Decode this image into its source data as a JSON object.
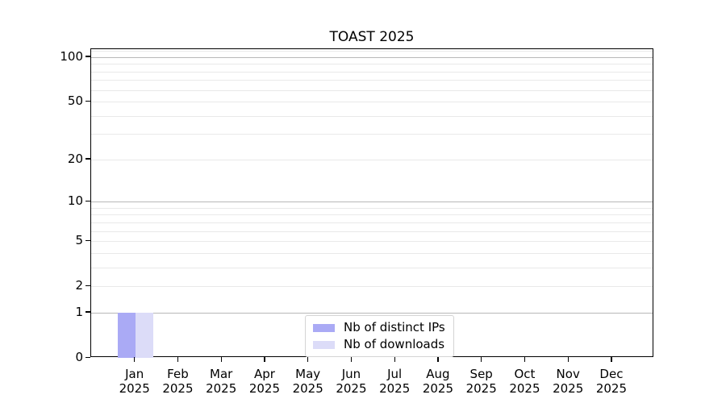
{
  "chart_data": {
    "type": "bar",
    "title": "TOAST 2025",
    "categories": [
      "Jan 2025",
      "Feb 2025",
      "Mar 2025",
      "Apr 2025",
      "May 2025",
      "Jun 2025",
      "Jul 2025",
      "Aug 2025",
      "Sep 2025",
      "Oct 2025",
      "Nov 2025",
      "Dec 2025"
    ],
    "series": [
      {
        "name": "Nb of distinct IPs",
        "color": "#aaaaf5",
        "values": [
          1,
          0,
          0,
          0,
          0,
          0,
          0,
          0,
          0,
          0,
          0,
          0
        ]
      },
      {
        "name": "Nb of downloads",
        "color": "#dcdcf8",
        "values": [
          1,
          0,
          0,
          0,
          0,
          0,
          0,
          0,
          0,
          0,
          0,
          0
        ]
      }
    ],
    "xlabel": "",
    "ylabel": "",
    "yscale": "log1p",
    "ylim": [
      0,
      113
    ],
    "ytick_values": [
      0,
      1,
      2,
      5,
      10,
      20,
      50,
      100
    ],
    "grid": {
      "on": true,
      "major_values": [
        1,
        10,
        100
      ],
      "minor_values": [
        2,
        3,
        4,
        5,
        6,
        7,
        8,
        9,
        20,
        30,
        40,
        50,
        60,
        70,
        80,
        90,
        110
      ],
      "major_color": "#b8b8b8",
      "minor_color": "#e9e9e9"
    },
    "legend": {
      "position": "lower center"
    }
  },
  "colors": {
    "spine": "#000000",
    "text": "#000000",
    "background": "#ffffff"
  }
}
